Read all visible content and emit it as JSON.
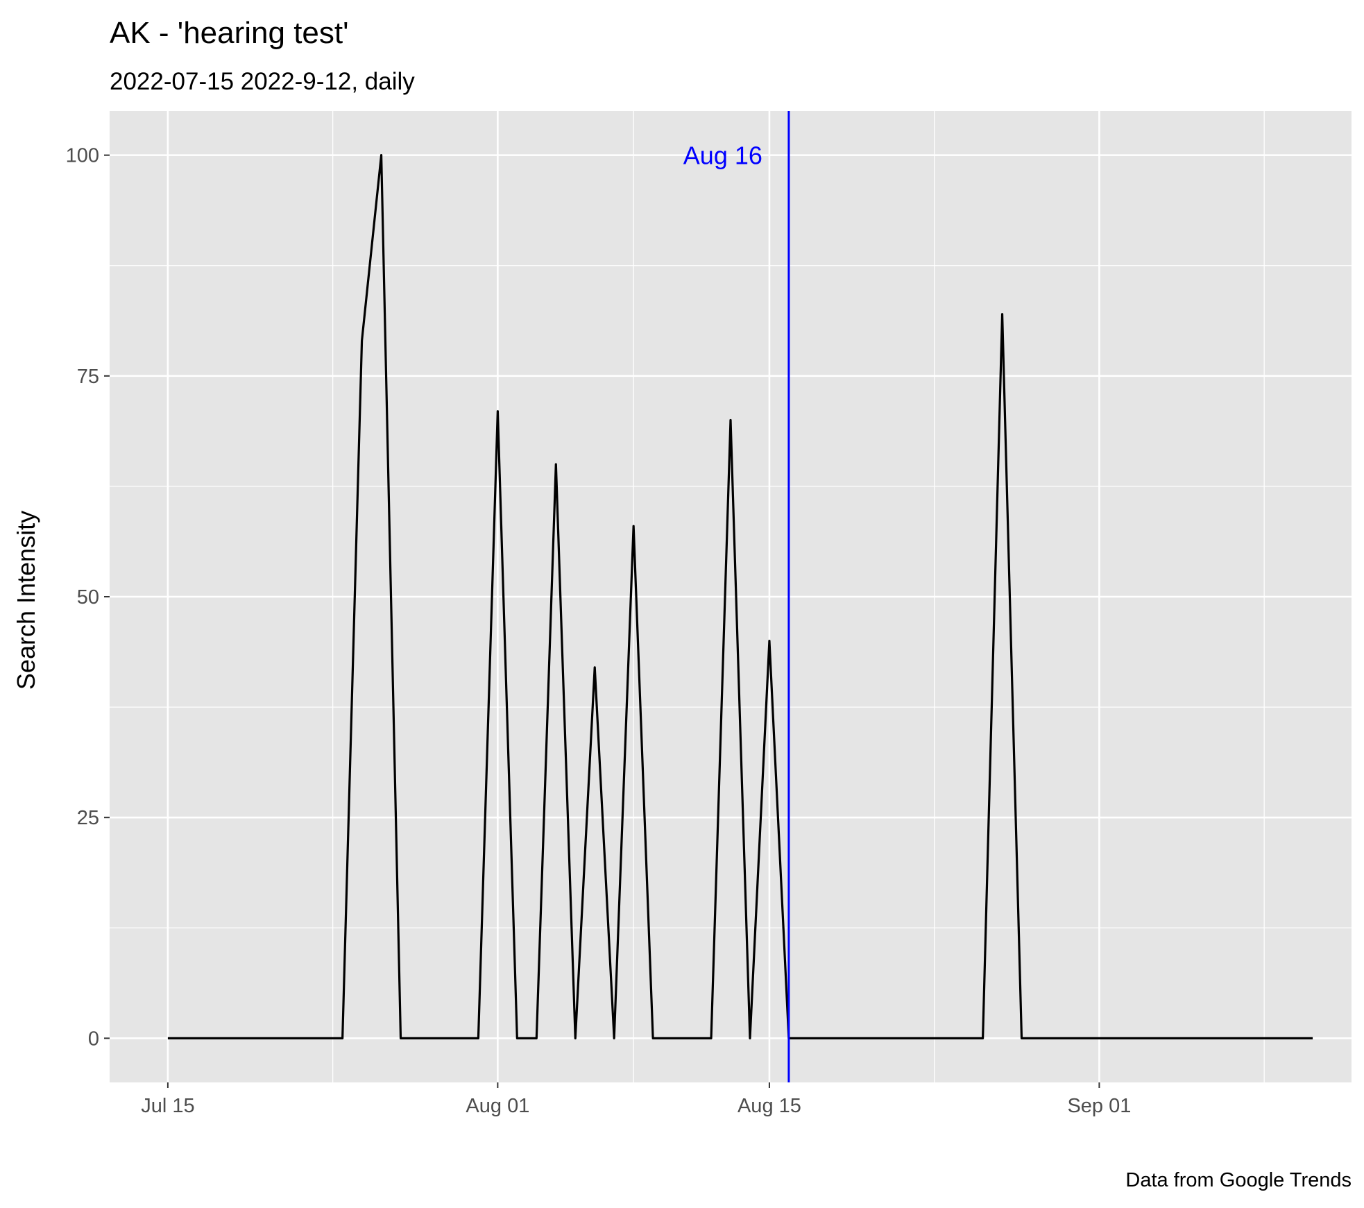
{
  "chart_data": {
    "type": "line",
    "title": "AK  - 'hearing test'",
    "subtitle": "2022-07-15 2022-9-12, daily",
    "caption": "Data from Google Trends",
    "xlabel": "",
    "ylabel": "Search Intensity",
    "xlim": [
      "2022-07-12",
      "2022-09-14"
    ],
    "ylim": [
      -5,
      105
    ],
    "x_ticks": [
      {
        "date": "2022-07-15",
        "label": "Jul 15"
      },
      {
        "date": "2022-08-01",
        "label": "Aug 01"
      },
      {
        "date": "2022-08-15",
        "label": "Aug 15"
      },
      {
        "date": "2022-09-01",
        "label": "Sep 01"
      }
    ],
    "y_ticks": [
      0,
      25,
      50,
      75,
      100
    ],
    "grid": true,
    "background_color": "#e5e5e5",
    "line_color": "#000000",
    "vline": {
      "date": "2022-08-16",
      "label": "Aug 16",
      "color": "#0000ff"
    },
    "x": [
      "2022-07-15",
      "2022-07-16",
      "2022-07-17",
      "2022-07-18",
      "2022-07-19",
      "2022-07-20",
      "2022-07-21",
      "2022-07-22",
      "2022-07-23",
      "2022-07-24",
      "2022-07-25",
      "2022-07-26",
      "2022-07-27",
      "2022-07-28",
      "2022-07-29",
      "2022-07-30",
      "2022-07-31",
      "2022-08-01",
      "2022-08-02",
      "2022-08-03",
      "2022-08-04",
      "2022-08-05",
      "2022-08-06",
      "2022-08-07",
      "2022-08-08",
      "2022-08-09",
      "2022-08-10",
      "2022-08-11",
      "2022-08-12",
      "2022-08-13",
      "2022-08-14",
      "2022-08-15",
      "2022-08-16",
      "2022-08-17",
      "2022-08-18",
      "2022-08-19",
      "2022-08-20",
      "2022-08-21",
      "2022-08-22",
      "2022-08-23",
      "2022-08-24",
      "2022-08-25",
      "2022-08-26",
      "2022-08-27",
      "2022-08-28",
      "2022-08-29",
      "2022-08-30",
      "2022-08-31",
      "2022-09-01",
      "2022-09-02",
      "2022-09-03",
      "2022-09-04",
      "2022-09-05",
      "2022-09-06",
      "2022-09-07",
      "2022-09-08",
      "2022-09-09",
      "2022-09-10",
      "2022-09-11",
      "2022-09-12"
    ],
    "y": [
      0,
      0,
      0,
      0,
      0,
      0,
      0,
      0,
      0,
      0,
      79,
      100,
      0,
      0,
      0,
      0,
      0,
      71,
      0,
      0,
      65,
      0,
      42,
      0,
      58,
      0,
      0,
      0,
      0,
      70,
      0,
      45,
      0,
      0,
      0,
      0,
      0,
      0,
      0,
      0,
      0,
      0,
      0,
      82,
      0,
      0,
      0,
      0,
      0,
      0,
      0,
      0,
      0,
      0,
      0,
      0,
      0,
      0,
      0,
      0
    ]
  }
}
